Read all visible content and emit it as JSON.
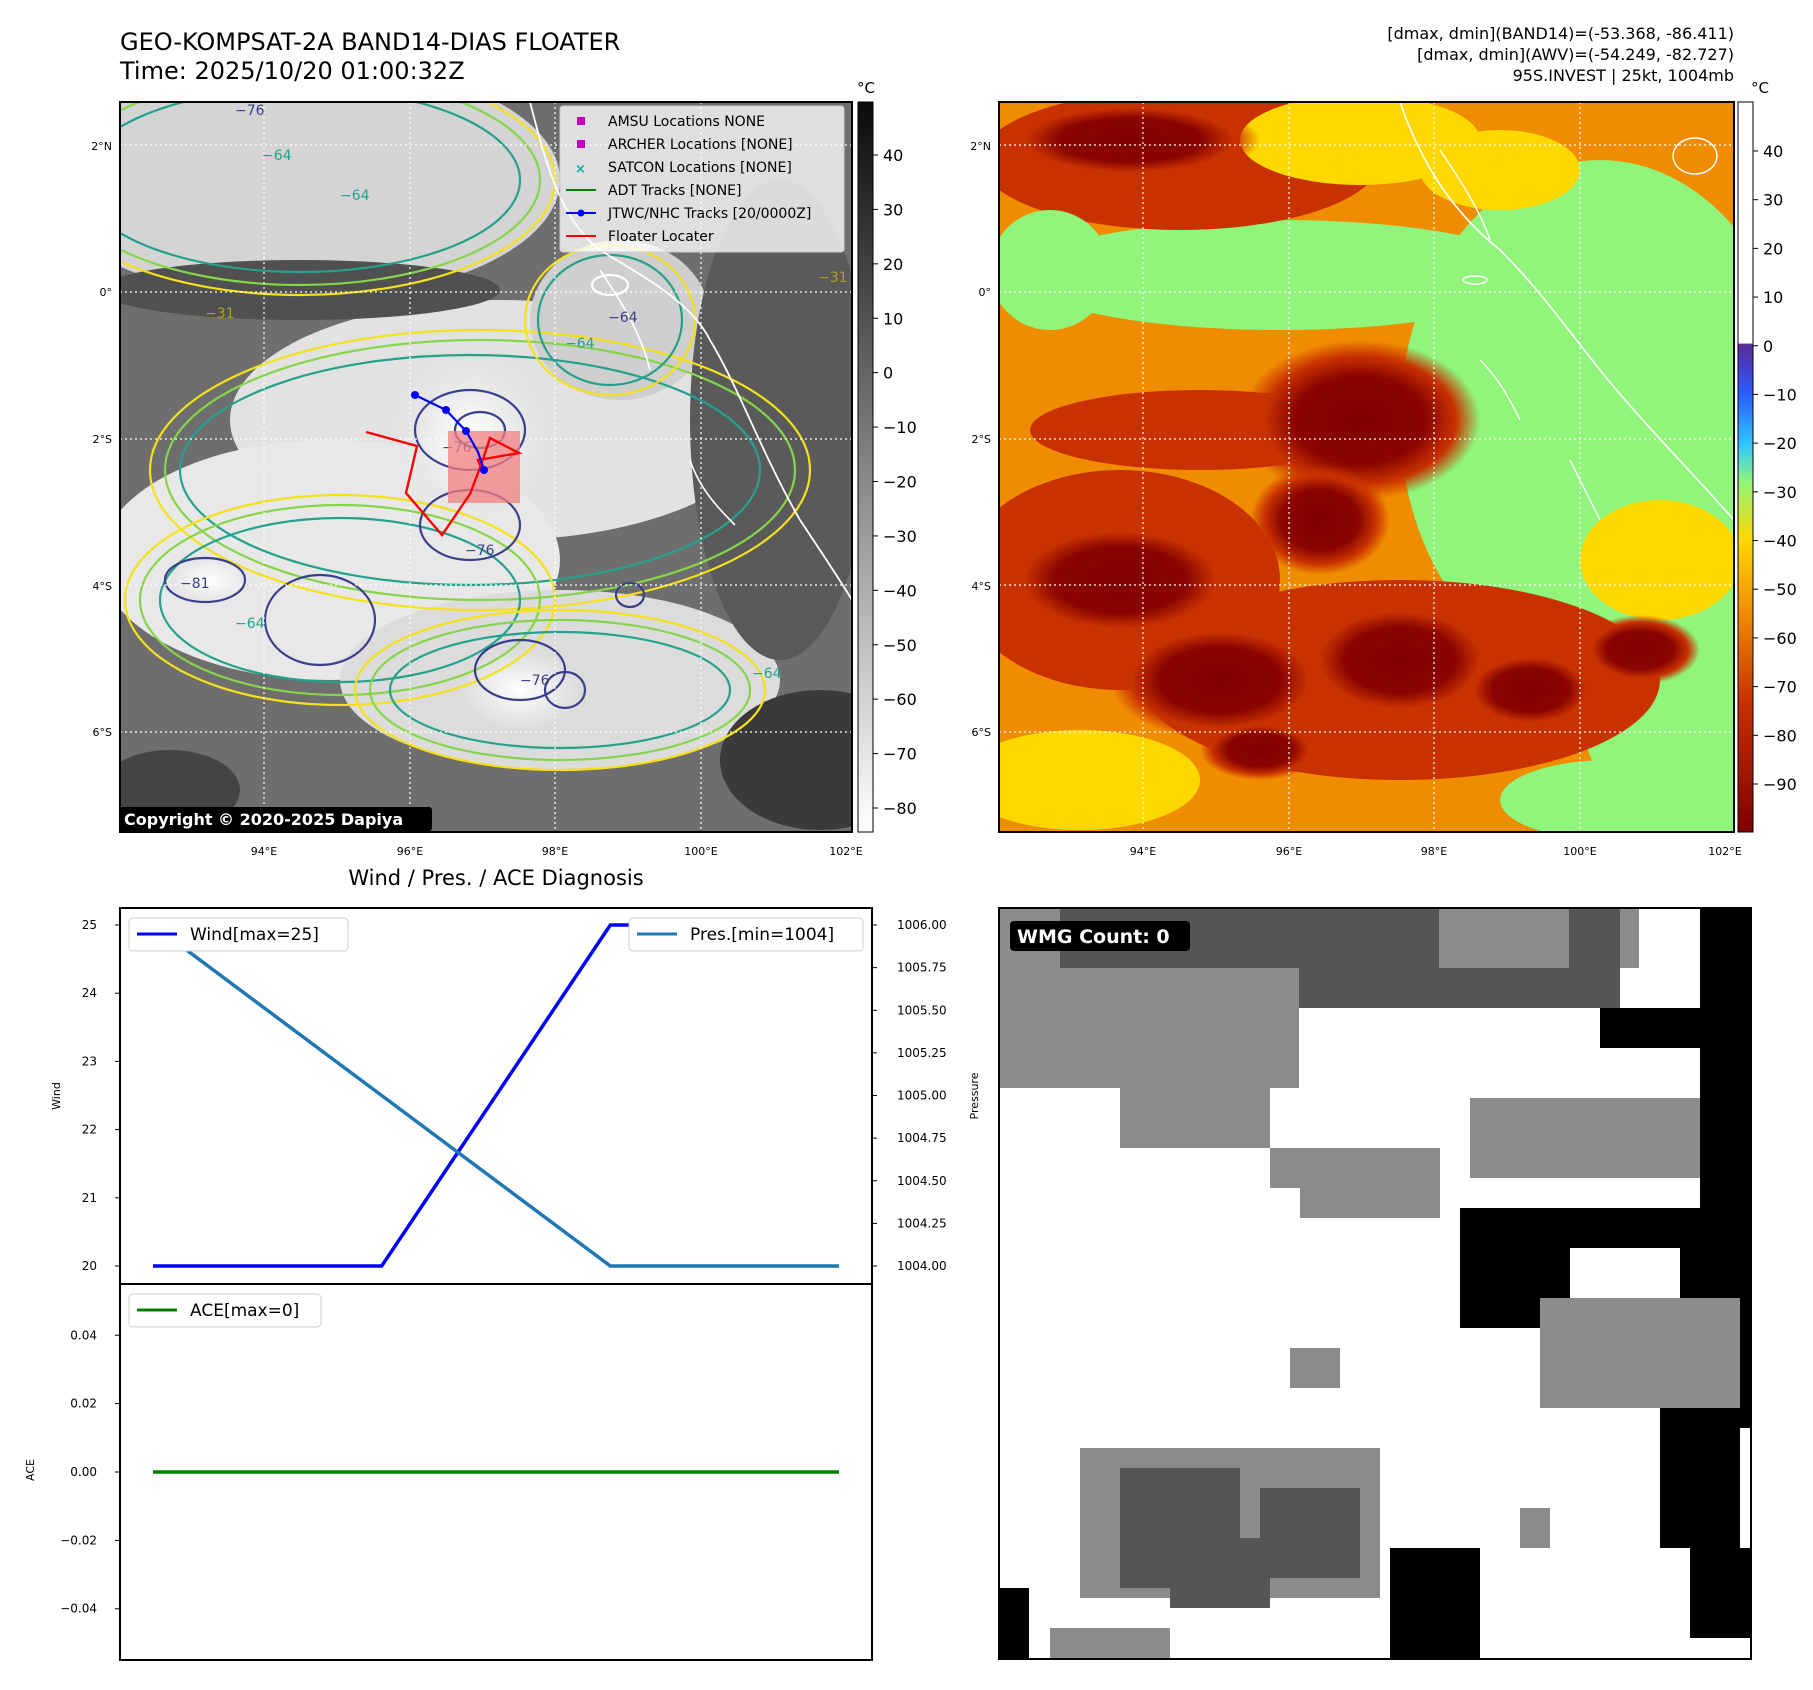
{
  "header": {
    "title": "GEO-KOMPSAT-2A BAND14-DIAS FLOATER",
    "time": "Time: 2025/10/20 01:00:32Z",
    "stat_band14": "[dmax, dmin](BAND14)=(-53.368, -86.411)",
    "stat_awv": "[dmax, dmin](AWV)=(-54.249, -82.727)",
    "storm": "95S.INVEST | 25kt, 1004mb"
  },
  "copyright": "Copyright © 2020-2025 Dapiya",
  "map_axes": {
    "lat_ticks": [
      "2°N",
      "0°",
      "2°S",
      "4°S",
      "6°S"
    ],
    "lon_ticks": [
      "94°E",
      "96°E",
      "98°E",
      "100°E",
      "102°E"
    ]
  },
  "map_left": {
    "colorbar_unit": "°C",
    "colorbar_ticks": [
      "40",
      "30",
      "20",
      "10",
      "0",
      "−10",
      "−20",
      "−30",
      "−40",
      "−50",
      "−60",
      "−70",
      "−80"
    ],
    "colorbar_colors": [
      "#0a0a0a",
      "#ffffff"
    ],
    "contour_labels": [
      "−76",
      "−64",
      "−64",
      "−31",
      "−64",
      "−64",
      "−76",
      "−76",
      "−81",
      "−64",
      "−64",
      "−76",
      "−31"
    ],
    "contour_colors": {
      "yellow": "#f2e11b",
      "light_green": "#86d549",
      "teal": "#25a18e",
      "navy": "#3b3f8c"
    },
    "legend": [
      {
        "label": "AMSU Locations NONE",
        "symbol": "square",
        "color": "#c000c0"
      },
      {
        "label": "ARCHER Locations [NONE]",
        "symbol": "square",
        "color": "#c000c0"
      },
      {
        "label": "SATCON Locations [NONE]",
        "symbol": "x",
        "color": "#00b0b0"
      },
      {
        "label": "ADT Tracks [NONE]",
        "symbol": "line",
        "color": "#008000"
      },
      {
        "label": "JTWC/NHC Tracks [20/0000Z]",
        "symbol": "line-dot",
        "color": "#0000ff"
      },
      {
        "label": "Floater Locater",
        "symbol": "line",
        "color": "#ff0000"
      }
    ]
  },
  "map_right": {
    "colorbar_unit": "°C",
    "colorbar_ticks": [
      "40",
      "30",
      "20",
      "10",
      "0",
      "−10",
      "−20",
      "−30",
      "−40",
      "−50",
      "−60",
      "−70",
      "−80",
      "−90"
    ],
    "colormap_colors": [
      "#800000",
      "#c83200",
      "#f08c00",
      "#ffd800",
      "#90f57a",
      "#30c8ff",
      "#2a5cff",
      "#5a2a9a",
      "#ffffff"
    ]
  },
  "chart_data": [
    {
      "type": "line",
      "title": "Wind / Pres. / ACE Diagnosis",
      "x": [
        0,
        1,
        2,
        3
      ],
      "ylabel": "Wind",
      "ylabel_right": "Pressure",
      "ylim": [
        20,
        25
      ],
      "ylim_right": [
        1004,
        1006
      ],
      "yticks": [
        "25",
        "24",
        "23",
        "22",
        "21",
        "20"
      ],
      "yticks_right": [
        "1006.00",
        "1005.75",
        "1005.50",
        "1005.25",
        "1005.00",
        "1004.75",
        "1004.50",
        "1004.25",
        "1004.00"
      ],
      "series": [
        {
          "name": "Wind[max=25]",
          "values": [
            20,
            20,
            25,
            25
          ],
          "color": "#0000ff",
          "axis": "left"
        },
        {
          "name": "Pres.[min=1004]",
          "values": [
            1006,
            1005,
            1004,
            1004
          ],
          "color": "#1f77b4",
          "axis": "right"
        }
      ]
    },
    {
      "type": "line",
      "x": [
        0,
        1,
        2,
        3
      ],
      "ylabel": "ACE",
      "ylim": [
        -0.055,
        0.055
      ],
      "yticks": [
        "0.04",
        "0.02",
        "0.00",
        "−0.02",
        "−0.04"
      ],
      "series": [
        {
          "name": "ACE[max=0]",
          "values": [
            0,
            0,
            0,
            0
          ],
          "color": "#008000"
        }
      ]
    }
  ],
  "wmg": {
    "label": "WMG Count: 0",
    "palette": [
      "#ffffff",
      "#8c8c8c",
      "#555555",
      "#000000"
    ]
  }
}
